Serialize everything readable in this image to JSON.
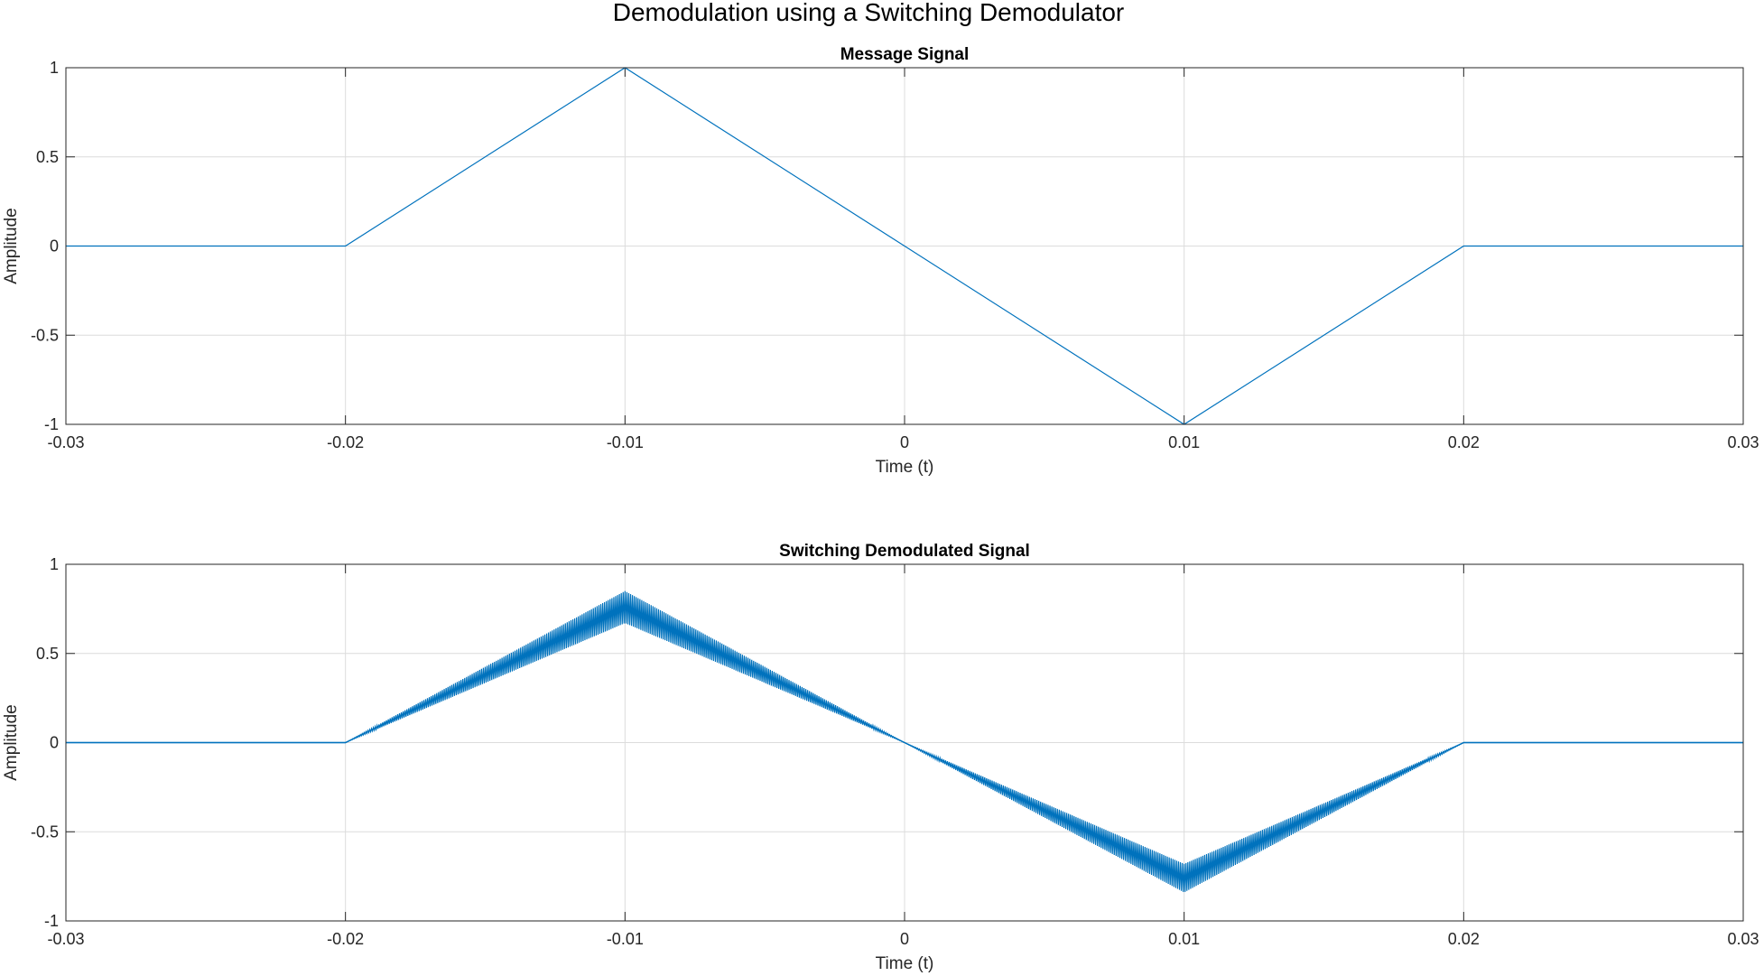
{
  "figure": {
    "title": "Demodulation using a Switching Demodulator",
    "line_color": "#0072BD",
    "grid_color": "#dcdcdc",
    "axis_color": "#262626"
  },
  "chart_data": [
    {
      "type": "line",
      "title": "Message Signal",
      "xlabel": "Time (t)",
      "ylabel": "Amplitude",
      "xlim": [
        -0.03,
        0.03
      ],
      "ylim": [
        -1,
        1
      ],
      "grid": true,
      "xticks": [
        -0.03,
        -0.02,
        -0.01,
        0,
        0.01,
        0.02,
        0.03
      ],
      "xtick_labels": [
        "-0.03",
        "-0.02",
        "-0.01",
        "0",
        "0.01",
        "0.02",
        "0.03"
      ],
      "yticks": [
        -1,
        -0.5,
        0,
        0.5,
        1
      ],
      "ytick_labels": [
        "-1",
        "-0.5",
        "0",
        "0.5",
        "1"
      ],
      "series": [
        {
          "x": [
            -0.03,
            -0.02,
            -0.01,
            0.0,
            0.01,
            0.02,
            0.03
          ],
          "y": [
            0,
            0,
            1,
            0,
            -1,
            0,
            0
          ]
        }
      ]
    },
    {
      "type": "line",
      "title": "Switching Demodulated Signal",
      "xlabel": "Time (t)",
      "ylabel": "Amplitude",
      "xlim": [
        -0.03,
        0.03
      ],
      "ylim": [
        -1,
        1
      ],
      "grid": true,
      "xticks": [
        -0.03,
        -0.02,
        -0.01,
        0,
        0.01,
        0.02,
        0.03
      ],
      "xtick_labels": [
        "-0.03",
        "-0.02",
        "-0.01",
        "0",
        "0.01",
        "0.02",
        "0.03"
      ],
      "yticks": [
        -1,
        -0.5,
        0,
        0.5,
        1
      ],
      "ytick_labels": [
        "-1",
        "-0.5",
        "0",
        "0.5",
        "1"
      ],
      "series": [
        {
          "x": [
            -0.03,
            -0.02,
            -0.01,
            0.0,
            0.01,
            0.02,
            0.03
          ],
          "y": [
            0,
            0,
            0.76,
            0,
            -0.76,
            0,
            0
          ],
          "upper_envelope": [
            0,
            0,
            0.85,
            0,
            -0.68,
            0,
            0
          ],
          "lower_envelope": [
            0,
            0,
            0.67,
            0,
            -0.84,
            0,
            0
          ]
        }
      ]
    }
  ]
}
